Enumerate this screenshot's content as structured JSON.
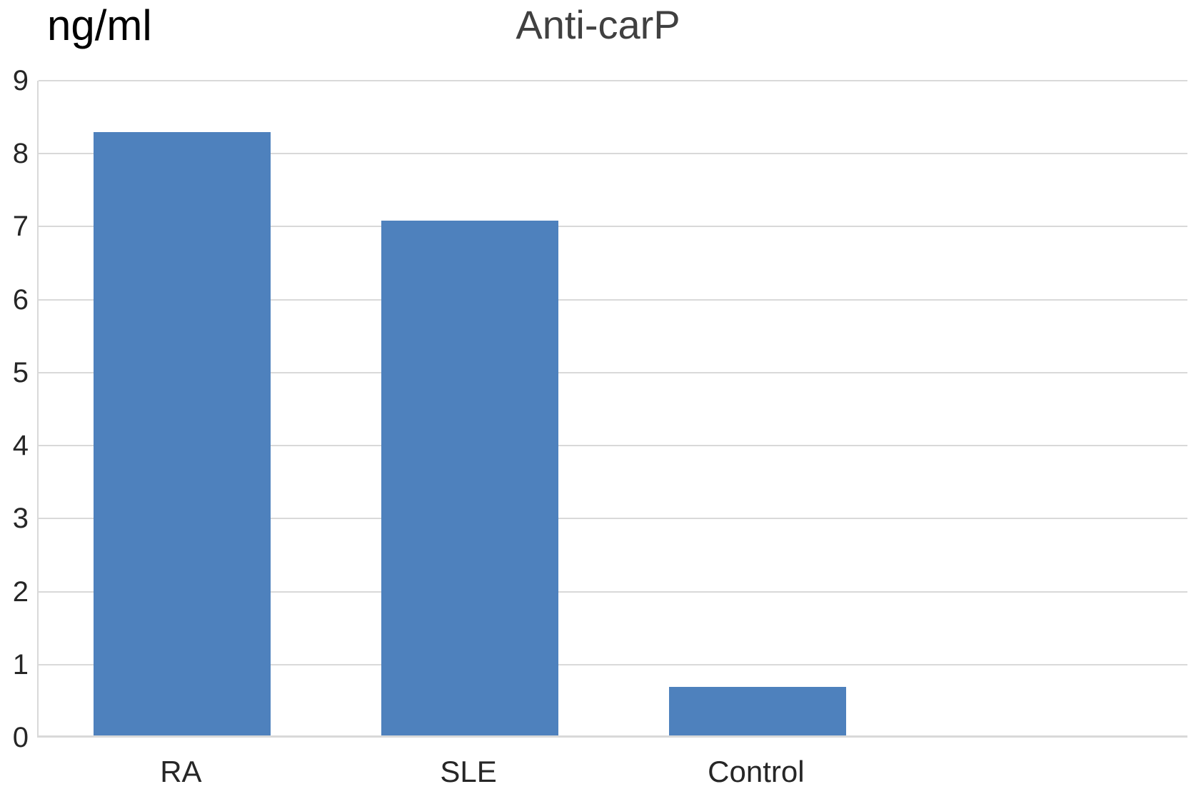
{
  "chart_data": {
    "type": "bar",
    "title": "Anti-carP",
    "ylabel": "ng/ml",
    "xlabel": "",
    "categories": [
      "RA",
      "SLE",
      "Control"
    ],
    "values": [
      8.27,
      7.05,
      0.67
    ],
    "ylim": [
      0,
      9
    ],
    "yticks": [
      0,
      1,
      2,
      3,
      4,
      5,
      6,
      7,
      8,
      9
    ],
    "grid": true,
    "legend": false,
    "category_slots": 4
  },
  "colors": {
    "bar": "#4e81bd",
    "gridline": "#d9d9d9",
    "axis_line": "#d9d9d9",
    "title_text": "#404040",
    "tick_text": "#262626",
    "unit_label_text": "#000000",
    "background": "#ffffff"
  }
}
